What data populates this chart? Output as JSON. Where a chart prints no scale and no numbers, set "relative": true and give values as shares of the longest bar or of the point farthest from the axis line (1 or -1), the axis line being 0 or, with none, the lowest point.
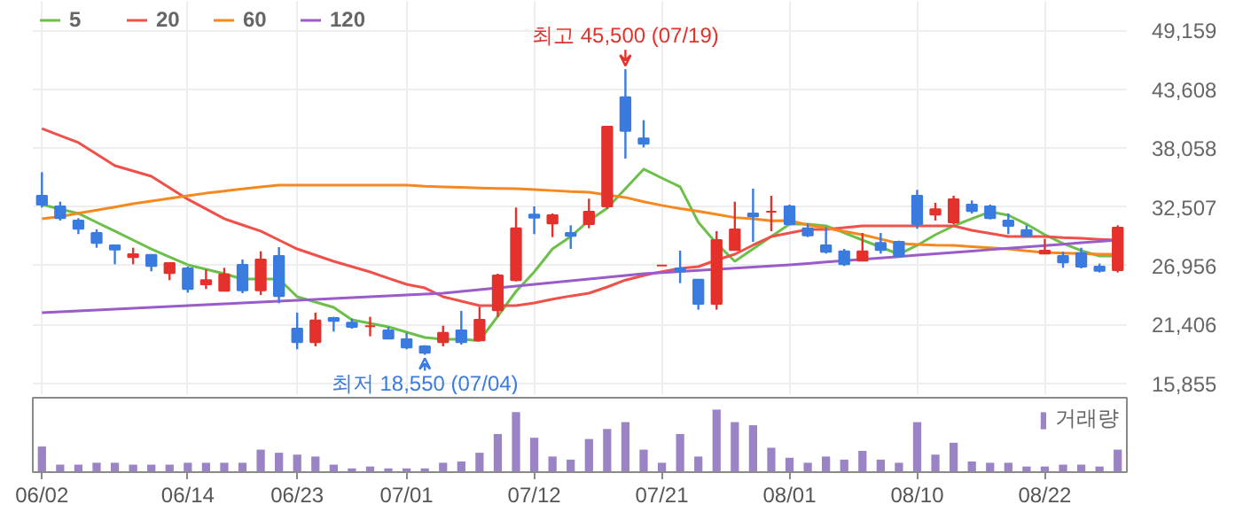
{
  "chart_data": [
    {
      "type": "candlestick",
      "categories": [
        null,
        null,
        null,
        null,
        null,
        null,
        null,
        null,
        null,
        null,
        null,
        null,
        null,
        null,
        null,
        null,
        null,
        null,
        null,
        null,
        null,
        null,
        null,
        null,
        null,
        null,
        null,
        null,
        null,
        null,
        null,
        null,
        null,
        null,
        null,
        null,
        null,
        null,
        null,
        null,
        null,
        null,
        null,
        null,
        null,
        null,
        null,
        null,
        null,
        null,
        null,
        null,
        null,
        null,
        null,
        null,
        null,
        null,
        null,
        null
      ],
      "ohlc": [
        [
          33560,
          35789,
          32446,
          32725
        ],
        [
          32557,
          33003,
          31219,
          31442
        ],
        [
          31219,
          31442,
          29938,
          30439
        ],
        [
          30049,
          30383,
          28656,
          29102
        ],
        [
          28879,
          28879,
          27096,
          28489
        ],
        [
          27764,
          28656,
          27096,
          28043
        ],
        [
          27987,
          27987,
          26427,
          26929
        ],
        [
          26260,
          27207,
          25591,
          27207
        ],
        [
          26706,
          26873,
          24421,
          24755
        ],
        [
          25201,
          26594,
          24755,
          25591
        ],
        [
          24588,
          26762,
          24588,
          26148
        ],
        [
          27040,
          27541,
          24365,
          24644
        ],
        [
          24644,
          28321,
          24198,
          27541
        ],
        [
          27876,
          28712,
          23417,
          24086
        ],
        [
          21021,
          22526,
          19070,
          19739
        ],
        [
          19739,
          22526,
          19349,
          21801
        ],
        [
          22024,
          22136,
          20742,
          21745
        ],
        [
          21578,
          21968,
          21021,
          21188
        ],
        [
          21244,
          22136,
          20297,
          21244
        ],
        [
          20854,
          21188,
          20074,
          20074
        ],
        [
          20018,
          20631,
          19070,
          19238
        ],
        [
          19349,
          19460,
          18550,
          18736
        ],
        [
          19739,
          21300,
          19349,
          20631
        ],
        [
          20854,
          22693,
          19516,
          19739
        ],
        [
          19906,
          23083,
          19906,
          21857
        ],
        [
          22749,
          26204,
          22136,
          26036
        ],
        [
          25591,
          32446,
          25479,
          30495
        ],
        [
          31777,
          32557,
          29938,
          31498
        ],
        [
          30941,
          31888,
          29659,
          31721
        ],
        [
          30049,
          30774,
          28545,
          29771
        ],
        [
          30885,
          33282,
          30495,
          32056
        ],
        [
          32557,
          40081,
          32335,
          40081
        ],
        [
          42867,
          45500,
          37071,
          39690
        ],
        [
          38966,
          40693,
          38130,
          38464
        ],
        [
          26984,
          26984,
          26984,
          26984
        ],
        [
          26706,
          28377,
          25312,
          26427
        ],
        [
          25647,
          25647,
          22805,
          23362
        ],
        [
          23362,
          30216,
          22805,
          29380
        ],
        [
          28433,
          33003,
          28433,
          30383
        ],
        [
          31888,
          34229,
          29213,
          31610
        ],
        [
          32056,
          33560,
          30216,
          32056
        ],
        [
          32557,
          32725,
          30774,
          30885
        ],
        [
          30495,
          30941,
          29659,
          29826
        ],
        [
          28879,
          30606,
          28099,
          28266
        ],
        [
          28321,
          28545,
          26929,
          27096
        ],
        [
          27430,
          30049,
          27430,
          28321
        ],
        [
          29102,
          30049,
          28099,
          28433
        ],
        [
          29213,
          29325,
          27764,
          27876
        ],
        [
          33560,
          34118,
          30439,
          30885
        ],
        [
          31777,
          32892,
          31219,
          32279
        ],
        [
          31052,
          33560,
          30885,
          33226
        ],
        [
          32725,
          33115,
          31888,
          32112
        ],
        [
          32557,
          32725,
          31331,
          31442
        ],
        [
          31219,
          31888,
          29938,
          30718
        ],
        [
          30328,
          30774,
          29659,
          29771
        ],
        [
          28099,
          29492,
          28099,
          28377
        ],
        [
          27876,
          28266,
          26762,
          27263
        ],
        [
          28155,
          28656,
          26706,
          26873
        ],
        [
          26873,
          27151,
          26315,
          26482
        ],
        [
          26538,
          30774,
          26315,
          30551
        ]
      ],
      "colors": [
        "#3a7be0",
        "#3a7be0",
        "#3a7be0",
        "#3a7be0",
        "#3a7be0",
        "#e4312b",
        "#3a7be0",
        "#e4312b",
        "#3a7be0",
        "#e4312b",
        "#e4312b",
        "#3a7be0",
        "#e4312b",
        "#3a7be0",
        "#3a7be0",
        "#e4312b",
        "#3a7be0",
        "#3a7be0",
        "#e4312b",
        "#3a7be0",
        "#3a7be0",
        "#3a7be0",
        "#e4312b",
        "#3a7be0",
        "#e4312b",
        "#e4312b",
        "#e4312b",
        "#3a7be0",
        "#e4312b",
        "#3a7be0",
        "#e4312b",
        "#e4312b",
        "#3a7be0",
        "#3a7be0",
        "#e4312b",
        "#3a7be0",
        "#3a7be0",
        "#e4312b",
        "#e4312b",
        "#3a7be0",
        "#e4312b",
        "#3a7be0",
        "#3a7be0",
        "#3a7be0",
        "#3a7be0",
        "#e4312b",
        "#3a7be0",
        "#3a7be0",
        "#3a7be0",
        "#e4312b",
        "#e4312b",
        "#3a7be0",
        "#3a7be0",
        "#3a7be0",
        "#3a7be0",
        "#e4312b",
        "#3a7be0",
        "#3a7be0",
        "#3a7be0",
        "#e4312b"
      ],
      "series": [
        {
          "name": "5",
          "type": "line",
          "color": "#6cc04a",
          "values": [
            32720,
            32310,
            31890,
            31050,
            30220,
            29380,
            28540,
            27790,
            27040,
            26620,
            26200,
            25700,
            25700,
            25700,
            24030,
            23530,
            23030,
            21850,
            21520,
            21190,
            20680,
            20180,
            20020,
            20020,
            19900,
            22190,
            24530,
            26370,
            28540,
            29710,
            31220,
            32390,
            34230,
            36070,
            35230,
            34400,
            31050,
            29050,
            27370,
            28540,
            29710,
            30880,
            30880,
            30720,
            30050,
            29380,
            28710,
            28040,
            28880,
            29880,
            30720,
            31390,
            32050,
            31720,
            30880,
            29880,
            29050,
            28380,
            27870,
            27870
          ]
        },
        {
          "name": "20",
          "type": "line",
          "color": "#f0504a",
          "values": [
            39910,
            39240,
            38580,
            37490,
            36400,
            35900,
            35400,
            34310,
            33230,
            32310,
            31390,
            30800,
            30220,
            29380,
            28540,
            27960,
            27370,
            26870,
            26370,
            25780,
            25200,
            24860,
            24030,
            23610,
            23190,
            23190,
            23190,
            23450,
            23800,
            24100,
            24360,
            24950,
            25600,
            26040,
            26400,
            26700,
            26870,
            27500,
            28040,
            28900,
            29710,
            30050,
            30380,
            30380,
            30550,
            30720,
            30720,
            30720,
            30720,
            30720,
            30720,
            30300,
            30000,
            29710,
            29710,
            29710,
            29600,
            29550,
            29450,
            29380
          ]
        },
        {
          "name": "60",
          "type": "line",
          "color": "#f5891f",
          "values": [
            31390,
            31600,
            31900,
            32200,
            32500,
            32800,
            33060,
            33300,
            33550,
            33800,
            34000,
            34200,
            34400,
            34560,
            34560,
            34560,
            34560,
            34560,
            34560,
            34560,
            34560,
            34450,
            34400,
            34350,
            34300,
            34250,
            34230,
            34150,
            34050,
            33950,
            33890,
            33650,
            33400,
            33000,
            32650,
            32350,
            32100,
            31800,
            31500,
            31390,
            31200,
            31220,
            30800,
            30500,
            30200,
            29880,
            29470,
            29050,
            28960,
            28900,
            28880,
            28750,
            28650,
            28540,
            28350,
            28210,
            28150,
            28100,
            28040,
            28040
          ]
        },
        {
          "name": "120",
          "type": "line",
          "color": "#9a5cc8",
          "values": [
            22520,
            22610,
            22690,
            22780,
            22860,
            22940,
            23030,
            23110,
            23190,
            23280,
            23360,
            23440,
            23530,
            23610,
            23690,
            23780,
            23860,
            23940,
            24030,
            24110,
            24190,
            24280,
            24360,
            24530,
            24700,
            24860,
            25030,
            25200,
            25370,
            25530,
            25700,
            25870,
            26040,
            26200,
            26310,
            26410,
            26520,
            26620,
            26720,
            26830,
            26930,
            27040,
            27170,
            27300,
            27430,
            27560,
            27690,
            27820,
            27950,
            28080,
            28210,
            28340,
            28470,
            28600,
            28730,
            28860,
            28990,
            29120,
            29250,
            29380
          ]
        }
      ],
      "ylim": [
        14833,
        51950
      ],
      "yticks": [
        {
          "value": 15855,
          "label": "15,855"
        },
        {
          "value": 21406,
          "label": "21,406"
        },
        {
          "value": 26956,
          "label": "26,956"
        },
        {
          "value": 32507,
          "label": "32,507"
        },
        {
          "value": 38058,
          "label": "38,058"
        },
        {
          "value": 43608,
          "label": "43,608"
        },
        {
          "value": 49159,
          "label": "49,159"
        }
      ],
      "grid": true,
      "legend": "top left",
      "tick_labels": "y",
      "annotations": [
        {
          "text": "최고 45,500 (07/19)",
          "y": 45500
        },
        {
          "text": "최저 18,550 (07/04)",
          "y": 18550
        }
      ]
    },
    {
      "type": "bar",
      "relative": true,
      "categories": [
        "06/02",
        null,
        null,
        null,
        null,
        null,
        null,
        null,
        "06/14",
        null,
        null,
        null,
        null,
        null,
        "06/23",
        null,
        null,
        null,
        null,
        null,
        "07/01",
        null,
        null,
        null,
        null,
        null,
        null,
        "07/12",
        null,
        null,
        null,
        null,
        null,
        null,
        "07/21",
        null,
        null,
        null,
        null,
        null,
        null,
        "08/01",
        null,
        null,
        null,
        null,
        null,
        null,
        "08/10",
        null,
        null,
        null,
        null,
        null,
        null,
        "08/22",
        null,
        null,
        null,
        null
      ],
      "series": [
        {
          "name": "거래량",
          "color": "#9b84c6",
          "values": [
            0.41,
            0.12,
            0.12,
            0.15,
            0.15,
            0.12,
            0.12,
            0.12,
            0.15,
            0.15,
            0.15,
            0.15,
            0.36,
            0.31,
            0.28,
            0.25,
            0.12,
            0.06,
            0.09,
            0.06,
            0.06,
            0.06,
            0.15,
            0.17,
            0.31,
            0.61,
            0.96,
            0.55,
            0.25,
            0.2,
            0.53,
            0.69,
            0.8,
            0.36,
            0.15,
            0.61,
            0.25,
            1,
            0.8,
            0.75,
            0.39,
            0.23,
            0.15,
            0.25,
            0.2,
            0.34,
            0.2,
            0.15,
            0.8,
            0.28,
            0.47,
            0.17,
            0.15,
            0.15,
            0.09,
            0.09,
            0.12,
            0.12,
            0.09,
            0.36
          ]
        }
      ],
      "legend": "top right",
      "tick_labels": "x"
    }
  ]
}
